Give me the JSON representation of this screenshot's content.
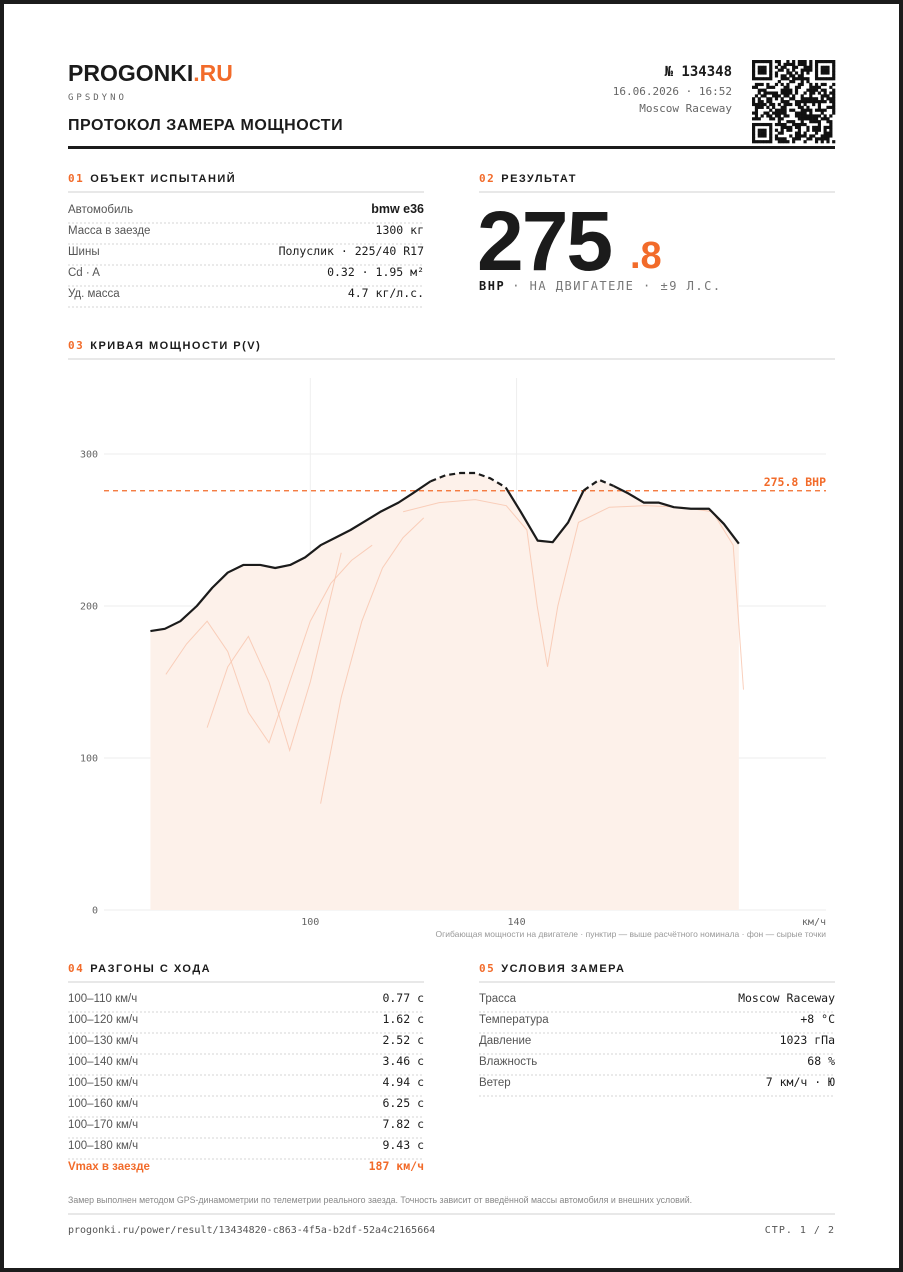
{
  "header": {
    "brand": "PROGONKI",
    "brand_suffix": ".RU",
    "subtitle": "GPSDYNO",
    "title": "ПРОТОКОЛ ЗАМЕРА МОЩНОСТИ",
    "number": "№ 134348",
    "datetime": "16.06.2026 · 16:52",
    "location": "Moscow Raceway"
  },
  "vehicle": {
    "num": "01",
    "title": "ОБЪЕКТ ИСПЫТАНИЙ",
    "rows": [
      {
        "label": "Автомобиль",
        "value": "bmw e36"
      },
      {
        "label": "Масса в заезде",
        "value": "1300 кг"
      },
      {
        "label": "Шины",
        "value": "Полуслик · 225/40 R17"
      },
      {
        "label": "Cd · A",
        "value": "0.32 · 1.95 м²"
      },
      {
        "label": "Уд. масса",
        "value": "4.7 кг/л.с."
      }
    ]
  },
  "result": {
    "num": "02",
    "title": "РЕЗУЛЬТАТ",
    "integer": "275",
    "fraction": ".8",
    "unit": "BHP",
    "note": "· НА ДВИГАТЕЛЕ · ±9 Л.С."
  },
  "curve": {
    "num": "03",
    "title": "КРИВАЯ МОЩНОСТИ P(V)"
  },
  "chart_data": {
    "type": "line",
    "x_label": "км/ч",
    "caption": "Огибающая мощности на двигателе · пунктир — выше расчётного номинала · фон — сырые точки",
    "xlim": [
      60,
      200
    ],
    "xticks": [
      100,
      140
    ],
    "ylim": [
      0,
      350
    ],
    "yticks": [
      0,
      100,
      200,
      300
    ],
    "grid": true,
    "reference": {
      "value": 275.8,
      "label": "275.8 BHP",
      "color": "#f26b2a"
    },
    "color": "#1b1b1b",
    "fill": "#fdf1ea",
    "x": [
      69,
      71.8,
      74.8,
      78,
      81,
      84,
      87,
      90.3,
      93.2,
      96.1,
      99,
      102,
      104.9,
      107.8,
      110.7,
      113.6,
      117.1,
      119.8,
      123.3,
      126.2,
      129.1,
      132,
      134.9,
      137.9,
      140.8,
      144.1,
      147,
      150,
      153,
      156,
      158.8,
      161.7,
      164.7,
      167.6,
      170.5,
      173.8,
      177.3,
      180.2,
      183.1
    ],
    "values": [
      183.5,
      185,
      190,
      200,
      212,
      222,
      227,
      227,
      225,
      227,
      232,
      240,
      245,
      250,
      256,
      262,
      268,
      274,
      282,
      286,
      287.5,
      287.5,
      284,
      278,
      262,
      243,
      242,
      255,
      276,
      283,
      279,
      274,
      268,
      268,
      265,
      264,
      264,
      254,
      241
    ],
    "raw_color": "#f7c4ad",
    "raw": [
      {
        "x": [
          118,
          125,
          132,
          138,
          142,
          144,
          146,
          148,
          152,
          158,
          165,
          172,
          178,
          182,
          184
        ],
        "values": [
          262,
          268,
          270,
          266,
          250,
          200,
          160,
          200,
          255,
          265,
          266,
          265,
          262,
          240,
          145
        ]
      },
      {
        "x": [
          72,
          76,
          80,
          84,
          88,
          92,
          96,
          100,
          104,
          108,
          112
        ],
        "values": [
          155,
          175,
          190,
          170,
          130,
          110,
          150,
          190,
          215,
          230,
          240
        ]
      },
      {
        "x": [
          102,
          106,
          110,
          114,
          118,
          122
        ],
        "values": [
          70,
          140,
          190,
          225,
          245,
          258
        ]
      },
      {
        "x": [
          80,
          84,
          88,
          92,
          96,
          100,
          106
        ],
        "values": [
          120,
          160,
          180,
          150,
          105,
          150,
          235
        ]
      }
    ]
  },
  "acceleration": {
    "num": "04",
    "title": "РАЗГОНЫ С ХОДА",
    "rows": [
      {
        "label": "100–110 км/ч",
        "value": "0.77 с"
      },
      {
        "label": "100–120 км/ч",
        "value": "1.62 с"
      },
      {
        "label": "100–130 км/ч",
        "value": "2.52 с"
      },
      {
        "label": "100–140 км/ч",
        "value": "3.46 с"
      },
      {
        "label": "100–150 км/ч",
        "value": "4.94 с"
      },
      {
        "label": "100–160 км/ч",
        "value": "6.25 с"
      },
      {
        "label": "100–170 км/ч",
        "value": "7.82 с"
      },
      {
        "label": "100–180 км/ч",
        "value": "9.43 с"
      }
    ],
    "vmax": {
      "label": "Vmax в заезде",
      "value": "187 км/ч"
    }
  },
  "conditions": {
    "num": "05",
    "title": "УСЛОВИЯ ЗАМЕРА",
    "rows": [
      {
        "label": "Трасса",
        "value": "Moscow Raceway"
      },
      {
        "label": "Температура",
        "value": "+8 °C"
      },
      {
        "label": "Давление",
        "value": "1023 гПа"
      },
      {
        "label": "Влажность",
        "value": "68 %"
      },
      {
        "label": "Ветер",
        "value": "7 км/ч · Ю"
      }
    ]
  },
  "footer": {
    "note": "Замер выполнен методом GPS-динамометрии по телеметрии реального заезда. Точность зависит от введённой массы автомобиля и внешних условий.",
    "url": "progonki.ru/power/result/13434820-c863-4f5a-b2df-52a4c2165664",
    "page": "СТР. 1 / 2"
  }
}
